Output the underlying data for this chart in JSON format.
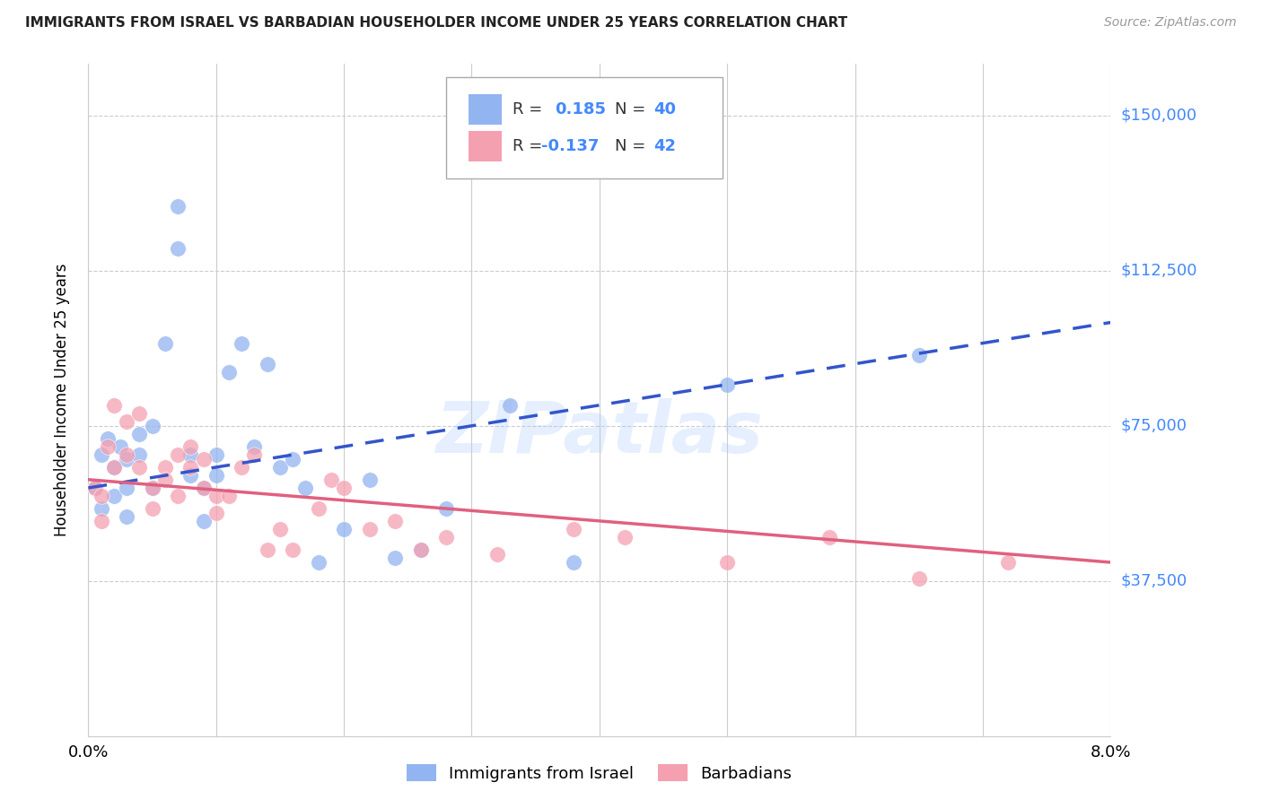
{
  "title": "IMMIGRANTS FROM ISRAEL VS BARBADIAN HOUSEHOLDER INCOME UNDER 25 YEARS CORRELATION CHART",
  "source": "Source: ZipAtlas.com",
  "ylabel": "Householder Income Under 25 years",
  "xlim": [
    0.0,
    0.08
  ],
  "ylim": [
    0,
    162500
  ],
  "yticks": [
    0,
    37500,
    75000,
    112500,
    150000
  ],
  "ytick_labels": [
    "",
    "$37,500",
    "$75,000",
    "$112,500",
    "$150,000"
  ],
  "xticks": [
    0.0,
    0.01,
    0.02,
    0.03,
    0.04,
    0.05,
    0.06,
    0.07,
    0.08
  ],
  "blue_color": "#92b4f0",
  "pink_color": "#f4a0b0",
  "blue_line_color": "#3355cc",
  "pink_line_color": "#e06080",
  "axis_label_color": "#4488ff",
  "legend_num_color": "#4488ff",
  "watermark": "ZIPatlas",
  "blue_scatter_x": [
    0.0005,
    0.001,
    0.001,
    0.0015,
    0.002,
    0.002,
    0.0025,
    0.003,
    0.003,
    0.003,
    0.004,
    0.004,
    0.005,
    0.005,
    0.006,
    0.007,
    0.007,
    0.008,
    0.008,
    0.009,
    0.009,
    0.01,
    0.01,
    0.011,
    0.012,
    0.013,
    0.014,
    0.015,
    0.016,
    0.017,
    0.018,
    0.02,
    0.022,
    0.024,
    0.026,
    0.028,
    0.033,
    0.038,
    0.05,
    0.065
  ],
  "blue_scatter_y": [
    60000,
    68000,
    55000,
    72000,
    65000,
    58000,
    70000,
    67000,
    60000,
    53000,
    73000,
    68000,
    75000,
    60000,
    95000,
    128000,
    118000,
    68000,
    63000,
    60000,
    52000,
    63000,
    68000,
    88000,
    95000,
    70000,
    90000,
    65000,
    67000,
    60000,
    42000,
    50000,
    62000,
    43000,
    45000,
    55000,
    80000,
    42000,
    85000,
    92000
  ],
  "pink_scatter_x": [
    0.0005,
    0.001,
    0.001,
    0.0015,
    0.002,
    0.002,
    0.003,
    0.003,
    0.004,
    0.004,
    0.005,
    0.005,
    0.006,
    0.006,
    0.007,
    0.007,
    0.008,
    0.008,
    0.009,
    0.009,
    0.01,
    0.01,
    0.011,
    0.012,
    0.013,
    0.014,
    0.015,
    0.016,
    0.018,
    0.019,
    0.02,
    0.022,
    0.024,
    0.026,
    0.028,
    0.032,
    0.038,
    0.042,
    0.05,
    0.058,
    0.065,
    0.072
  ],
  "pink_scatter_y": [
    60000,
    58000,
    52000,
    70000,
    80000,
    65000,
    68000,
    76000,
    65000,
    78000,
    60000,
    55000,
    65000,
    62000,
    58000,
    68000,
    65000,
    70000,
    67000,
    60000,
    58000,
    54000,
    58000,
    65000,
    68000,
    45000,
    50000,
    45000,
    55000,
    62000,
    60000,
    50000,
    52000,
    45000,
    48000,
    44000,
    50000,
    48000,
    42000,
    48000,
    38000,
    42000
  ],
  "blue_line_x0": 0.0,
  "blue_line_y0": 60000,
  "blue_line_x1": 0.08,
  "blue_line_y1": 100000,
  "pink_line_x0": 0.0,
  "pink_line_y0": 62000,
  "pink_line_x1": 0.08,
  "pink_line_y1": 42000
}
